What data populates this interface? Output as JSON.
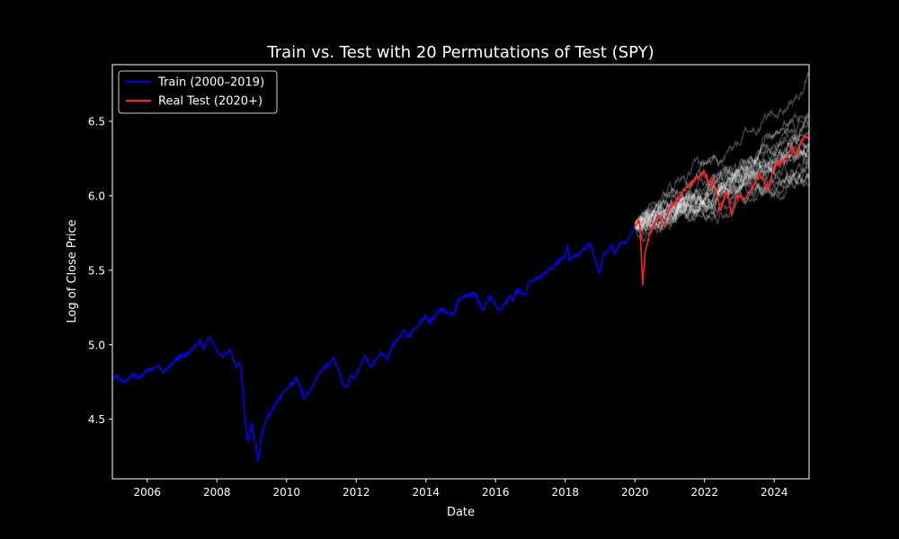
{
  "chart_data": {
    "type": "line",
    "title": "Train vs. Test with 20 Permutations of Test (SPY)",
    "xlabel": "Date",
    "ylabel": "Log of Close Price",
    "xlim": [
      "2005-01-01",
      "2025-01-01"
    ],
    "ylim": [
      4.1,
      6.88
    ],
    "x_ticks": [
      "2006",
      "2008",
      "2010",
      "2012",
      "2014",
      "2016",
      "2018",
      "2020",
      "2022",
      "2024"
    ],
    "y_ticks": [
      4.5,
      5.0,
      5.5,
      6.0,
      6.5
    ],
    "y_tick_labels": [
      "4.5",
      "5.0",
      "5.5",
      "6.0",
      "6.5"
    ],
    "grid": false,
    "legend_position": "top-left",
    "colors": {
      "background": "#000000",
      "train": "#0000ff",
      "test": "#ff2222",
      "permutation": "#ffffff",
      "text": "#ffffff"
    },
    "series": [
      {
        "name": "Train (2000–2019)",
        "color": "#0000ff",
        "points": [
          [
            "2005-01-01",
            4.77
          ],
          [
            "2005-03-01",
            4.79
          ],
          [
            "2005-04-15",
            4.75
          ],
          [
            "2005-06-01",
            4.77
          ],
          [
            "2005-08-01",
            4.8
          ],
          [
            "2005-10-15",
            4.78
          ],
          [
            "2005-12-01",
            4.82
          ],
          [
            "2006-03-01",
            4.84
          ],
          [
            "2006-05-01",
            4.86
          ],
          [
            "2006-06-15",
            4.81
          ],
          [
            "2006-09-01",
            4.86
          ],
          [
            "2006-12-01",
            4.92
          ],
          [
            "2007-03-01",
            4.94
          ],
          [
            "2007-05-01",
            4.98
          ],
          [
            "2007-07-15",
            5.03
          ],
          [
            "2007-08-15",
            4.97
          ],
          [
            "2007-10-10",
            5.05
          ],
          [
            "2007-12-01",
            5.0
          ],
          [
            "2008-01-20",
            4.94
          ],
          [
            "2008-03-15",
            4.92
          ],
          [
            "2008-05-15",
            4.97
          ],
          [
            "2008-07-15",
            4.86
          ],
          [
            "2008-09-01",
            4.88
          ],
          [
            "2008-09-30",
            4.7
          ],
          [
            "2008-10-20",
            4.48
          ],
          [
            "2008-11-20",
            4.35
          ],
          [
            "2009-01-01",
            4.47
          ],
          [
            "2009-03-09",
            4.22
          ],
          [
            "2009-04-15",
            4.4
          ],
          [
            "2009-06-15",
            4.52
          ],
          [
            "2009-09-01",
            4.6
          ],
          [
            "2009-12-01",
            4.68
          ],
          [
            "2010-04-20",
            4.78
          ],
          [
            "2010-07-01",
            4.64
          ],
          [
            "2010-09-01",
            4.7
          ],
          [
            "2010-12-01",
            4.8
          ],
          [
            "2011-04-30",
            4.91
          ],
          [
            "2011-06-15",
            4.86
          ],
          [
            "2011-08-10",
            4.74
          ],
          [
            "2011-10-03",
            4.72
          ],
          [
            "2011-11-01",
            4.8
          ],
          [
            "2011-12-15",
            4.78
          ],
          [
            "2012-03-30",
            4.93
          ],
          [
            "2012-06-01",
            4.85
          ],
          [
            "2012-09-15",
            4.95
          ],
          [
            "2012-11-15",
            4.9
          ],
          [
            "2013-01-15",
            5.0
          ],
          [
            "2013-05-20",
            5.1
          ],
          [
            "2013-06-25",
            5.05
          ],
          [
            "2013-12-31",
            5.2
          ],
          [
            "2014-02-03",
            5.15
          ],
          [
            "2014-06-01",
            5.24
          ],
          [
            "2014-10-15",
            5.2
          ],
          [
            "2014-12-01",
            5.3
          ],
          [
            "2015-05-20",
            5.35
          ],
          [
            "2015-08-25",
            5.23
          ],
          [
            "2015-11-01",
            5.33
          ],
          [
            "2016-02-11",
            5.23
          ],
          [
            "2016-06-01",
            5.33
          ],
          [
            "2016-06-27",
            5.29
          ],
          [
            "2016-08-15",
            5.37
          ],
          [
            "2016-11-04",
            5.34
          ],
          [
            "2016-12-15",
            5.42
          ],
          [
            "2017-06-01",
            5.48
          ],
          [
            "2017-12-31",
            5.6
          ],
          [
            "2018-01-26",
            5.67
          ],
          [
            "2018-02-08",
            5.57
          ],
          [
            "2018-06-01",
            5.62
          ],
          [
            "2018-09-20",
            5.68
          ],
          [
            "2018-12-24",
            5.48
          ],
          [
            "2019-02-01",
            5.6
          ],
          [
            "2019-05-01",
            5.67
          ],
          [
            "2019-06-03",
            5.61
          ],
          [
            "2019-08-01",
            5.69
          ],
          [
            "2019-10-01",
            5.68
          ],
          [
            "2019-12-31",
            5.8
          ]
        ]
      },
      {
        "name": "Real Test (2020+)",
        "color": "#ff2222",
        "points": [
          [
            "2020-01-02",
            5.8
          ],
          [
            "2020-02-19",
            5.83
          ],
          [
            "2020-03-23",
            5.4
          ],
          [
            "2020-04-15",
            5.62
          ],
          [
            "2020-06-08",
            5.75
          ],
          [
            "2020-09-02",
            5.87
          ],
          [
            "2020-10-30",
            5.8
          ],
          [
            "2020-12-31",
            5.92
          ],
          [
            "2021-03-01",
            5.96
          ],
          [
            "2021-06-01",
            6.04
          ],
          [
            "2021-09-01",
            6.1
          ],
          [
            "2021-12-31",
            6.16
          ],
          [
            "2022-03-08",
            6.06
          ],
          [
            "2022-03-29",
            6.12
          ],
          [
            "2022-06-16",
            5.9
          ],
          [
            "2022-08-16",
            6.04
          ],
          [
            "2022-10-12",
            5.87
          ],
          [
            "2022-12-01",
            6.0
          ],
          [
            "2023-03-01",
            5.98
          ],
          [
            "2023-06-01",
            6.08
          ],
          [
            "2023-07-31",
            6.15
          ],
          [
            "2023-10-27",
            6.04
          ],
          [
            "2023-12-31",
            6.2
          ],
          [
            "2024-04-15",
            6.24
          ],
          [
            "2024-07-15",
            6.33
          ],
          [
            "2024-08-05",
            6.27
          ],
          [
            "2024-11-10",
            6.4
          ],
          [
            "2025-01-01",
            6.39
          ]
        ]
      }
    ],
    "permutations": {
      "count": 20,
      "color": "#ffffff",
      "start": [
        "2020-01-02",
        5.8
      ],
      "end_dates": [
        "2025-01-01"
      ],
      "ending_values": [
        6.75,
        6.55,
        6.45,
        6.42,
        6.4,
        6.38,
        6.35,
        6.3,
        6.28,
        6.26,
        6.24,
        6.2,
        6.18,
        6.15,
        6.12,
        6.36,
        6.32,
        6.42,
        6.22,
        6.3
      ],
      "ranges_by_year": [
        [
          "2020-06-01",
          5.32,
          6.2
        ],
        [
          "2021-06-01",
          5.5,
          6.35
        ],
        [
          "2022-06-01",
          5.62,
          6.5
        ],
        [
          "2023-06-01",
          5.75,
          6.65
        ],
        [
          "2024-06-01",
          5.95,
          6.78
        ]
      ]
    }
  }
}
